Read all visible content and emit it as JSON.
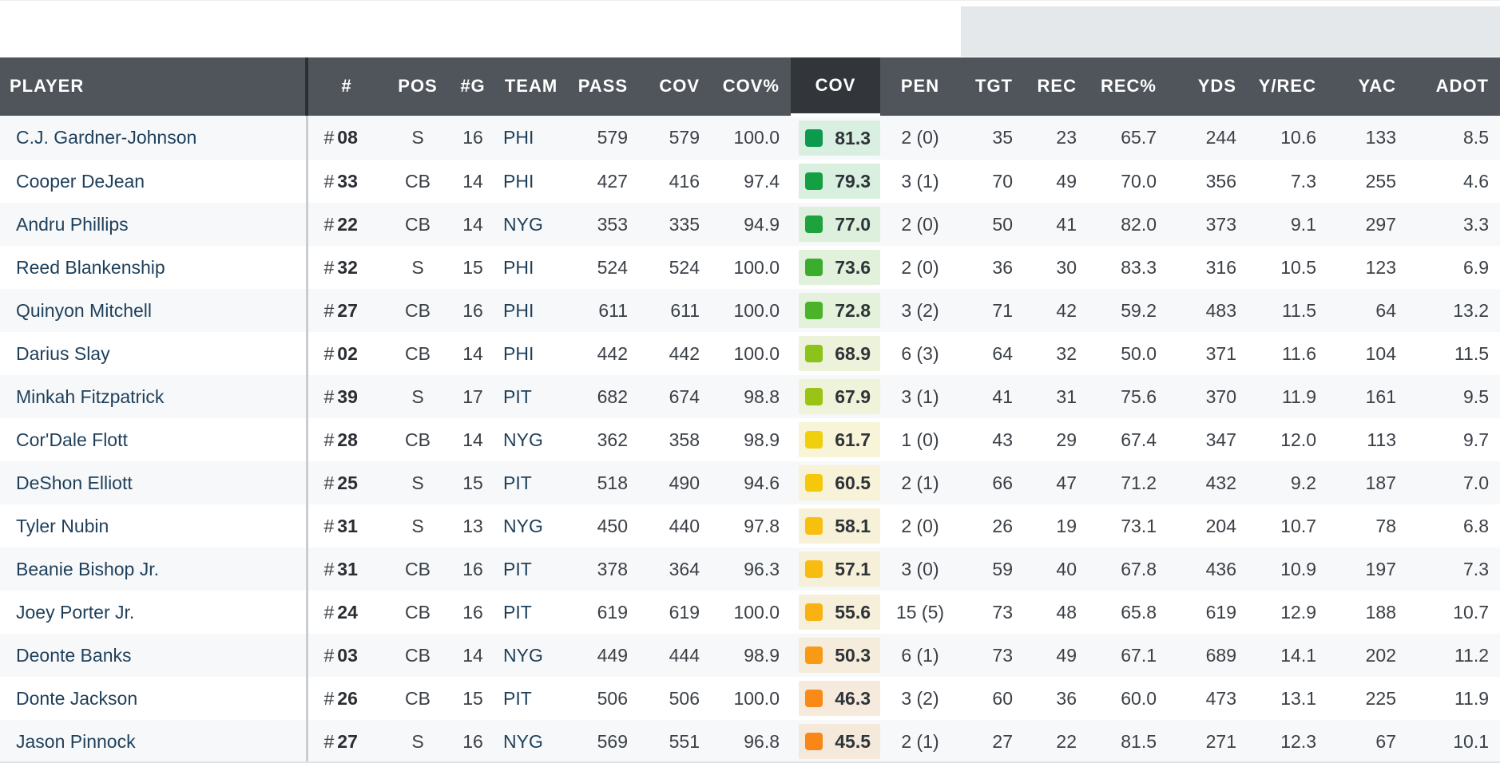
{
  "headers": {
    "player": "PLAYER",
    "number": "#",
    "pos": "POS",
    "games": "#G",
    "team": "TEAM",
    "pass": "PASS",
    "cov": "COV",
    "cov_pct": "COV%",
    "cov_grade": "COV",
    "pen": "PEN",
    "tgt": "TGT",
    "rec": "REC",
    "rec_pct": "REC%",
    "yds": "YDS",
    "y_rec": "Y/REC",
    "yac": "YAC",
    "adot": "ADOT"
  },
  "hash_symbol": "#",
  "rows": [
    {
      "player": "C.J. Gardner-Johnson",
      "jersey": "08",
      "pos": "S",
      "games": "16",
      "team": "PHI",
      "pass": "579",
      "cov": "579",
      "cov_pct": "100.0",
      "grade": "81.3",
      "grade_color": "#0e9a4e",
      "grade_bg": "#d8efe2",
      "pen": "2 (0)",
      "tgt": "35",
      "rec": "23",
      "rec_pct": "65.7",
      "yds": "244",
      "y_rec": "10.6",
      "yac": "133",
      "adot": "8.5"
    },
    {
      "player": "Cooper DeJean",
      "jersey": "33",
      "pos": "CB",
      "games": "14",
      "team": "PHI",
      "pass": "427",
      "cov": "416",
      "cov_pct": "97.4",
      "grade": "79.3",
      "grade_color": "#13a043",
      "grade_bg": "#d9efe0",
      "pen": "3 (1)",
      "tgt": "70",
      "rec": "49",
      "rec_pct": "70.0",
      "yds": "356",
      "y_rec": "7.3",
      "yac": "255",
      "adot": "4.6"
    },
    {
      "player": "Andru Phillips",
      "jersey": "22",
      "pos": "CB",
      "games": "14",
      "team": "NYG",
      "pass": "353",
      "cov": "335",
      "cov_pct": "94.9",
      "grade": "77.0",
      "grade_color": "#1ea33c",
      "grade_bg": "#dcf0dd",
      "pen": "2 (0)",
      "tgt": "50",
      "rec": "41",
      "rec_pct": "82.0",
      "yds": "373",
      "y_rec": "9.1",
      "yac": "297",
      "adot": "3.3"
    },
    {
      "player": "Reed Blankenship",
      "jersey": "32",
      "pos": "S",
      "games": "15",
      "team": "PHI",
      "pass": "524",
      "cov": "524",
      "cov_pct": "100.0",
      "grade": "73.6",
      "grade_color": "#3aae2c",
      "grade_bg": "#e1f1dc",
      "pen": "2 (0)",
      "tgt": "36",
      "rec": "30",
      "rec_pct": "83.3",
      "yds": "316",
      "y_rec": "10.5",
      "yac": "123",
      "adot": "6.9"
    },
    {
      "player": "Quinyon Mitchell",
      "jersey": "27",
      "pos": "CB",
      "games": "16",
      "team": "PHI",
      "pass": "611",
      "cov": "611",
      "cov_pct": "100.0",
      "grade": "72.8",
      "grade_color": "#4cb229",
      "grade_bg": "#e4f2dc",
      "pen": "3 (2)",
      "tgt": "71",
      "rec": "42",
      "rec_pct": "59.2",
      "yds": "483",
      "y_rec": "11.5",
      "yac": "64",
      "adot": "13.2"
    },
    {
      "player": "Darius Slay",
      "jersey": "02",
      "pos": "CB",
      "games": "14",
      "team": "PHI",
      "pass": "442",
      "cov": "442",
      "cov_pct": "100.0",
      "grade": "68.9",
      "grade_color": "#8cc21a",
      "grade_bg": "#ecf3da",
      "pen": "6 (3)",
      "tgt": "64",
      "rec": "32",
      "rec_pct": "50.0",
      "yds": "371",
      "y_rec": "11.6",
      "yac": "104",
      "adot": "11.5"
    },
    {
      "player": "Minkah Fitzpatrick",
      "jersey": "39",
      "pos": "S",
      "games": "17",
      "team": "PIT",
      "pass": "682",
      "cov": "674",
      "cov_pct": "98.8",
      "grade": "67.9",
      "grade_color": "#99c416",
      "grade_bg": "#eef3d9",
      "pen": "3 (1)",
      "tgt": "41",
      "rec": "31",
      "rec_pct": "75.6",
      "yds": "370",
      "y_rec": "11.9",
      "yac": "161",
      "adot": "9.5"
    },
    {
      "player": "Cor'Dale Flott",
      "jersey": "28",
      "pos": "CB",
      "games": "14",
      "team": "NYG",
      "pass": "362",
      "cov": "358",
      "cov_pct": "98.9",
      "grade": "61.7",
      "grade_color": "#f0cf0c",
      "grade_bg": "#f7f4d8",
      "pen": "1 (0)",
      "tgt": "43",
      "rec": "29",
      "rec_pct": "67.4",
      "yds": "347",
      "y_rec": "12.0",
      "yac": "113",
      "adot": "9.7"
    },
    {
      "player": "DeShon Elliott",
      "jersey": "25",
      "pos": "S",
      "games": "15",
      "team": "PIT",
      "pass": "518",
      "cov": "490",
      "cov_pct": "94.6",
      "grade": "60.5",
      "grade_color": "#f5c80c",
      "grade_bg": "#f7f2d8",
      "pen": "2 (1)",
      "tgt": "66",
      "rec": "47",
      "rec_pct": "71.2",
      "yds": "432",
      "y_rec": "9.2",
      "yac": "187",
      "adot": "7.0"
    },
    {
      "player": "Tyler Nubin",
      "jersey": "31",
      "pos": "S",
      "games": "13",
      "team": "NYG",
      "pass": "450",
      "cov": "440",
      "cov_pct": "97.8",
      "grade": "58.1",
      "grade_color": "#f7c00e",
      "grade_bg": "#f7f1d9",
      "pen": "2 (0)",
      "tgt": "26",
      "rec": "19",
      "rec_pct": "73.1",
      "yds": "204",
      "y_rec": "10.7",
      "yac": "78",
      "adot": "6.8"
    },
    {
      "player": "Beanie Bishop Jr.",
      "jersey": "31",
      "pos": "CB",
      "games": "16",
      "team": "PIT",
      "pass": "378",
      "cov": "364",
      "cov_pct": "96.3",
      "grade": "57.1",
      "grade_color": "#f8bb10",
      "grade_bg": "#f6f0d9",
      "pen": "3 (0)",
      "tgt": "59",
      "rec": "40",
      "rec_pct": "67.8",
      "yds": "436",
      "y_rec": "10.9",
      "yac": "197",
      "adot": "7.3"
    },
    {
      "player": "Joey Porter Jr.",
      "jersey": "24",
      "pos": "CB",
      "games": "16",
      "team": "PIT",
      "pass": "619",
      "cov": "619",
      "cov_pct": "100.0",
      "grade": "55.6",
      "grade_color": "#f9b211",
      "grade_bg": "#f6efd9",
      "pen": "15 (5)",
      "tgt": "73",
      "rec": "48",
      "rec_pct": "65.8",
      "yds": "619",
      "y_rec": "12.9",
      "yac": "188",
      "adot": "10.7"
    },
    {
      "player": "Deonte Banks",
      "jersey": "03",
      "pos": "CB",
      "games": "14",
      "team": "NYG",
      "pass": "449",
      "cov": "444",
      "cov_pct": "98.9",
      "grade": "50.3",
      "grade_color": "#f99a15",
      "grade_bg": "#f5ecdc",
      "pen": "6 (1)",
      "tgt": "73",
      "rec": "49",
      "rec_pct": "67.1",
      "yds": "689",
      "y_rec": "14.1",
      "yac": "202",
      "adot": "11.2"
    },
    {
      "player": "Donte Jackson",
      "jersey": "26",
      "pos": "CB",
      "games": "15",
      "team": "PIT",
      "pass": "506",
      "cov": "506",
      "cov_pct": "100.0",
      "grade": "46.3",
      "grade_color": "#f98a17",
      "grade_bg": "#f5eadc",
      "pen": "3 (2)",
      "tgt": "60",
      "rec": "36",
      "rec_pct": "60.0",
      "yds": "473",
      "y_rec": "13.1",
      "yac": "225",
      "adot": "11.9"
    },
    {
      "player": "Jason Pinnock",
      "jersey": "27",
      "pos": "S",
      "games": "16",
      "team": "NYG",
      "pass": "569",
      "cov": "551",
      "cov_pct": "96.8",
      "grade": "45.5",
      "grade_color": "#f98616",
      "grade_bg": "#f5e9dc",
      "pen": "2 (1)",
      "tgt": "27",
      "rec": "22",
      "rec_pct": "81.5",
      "yds": "271",
      "y_rec": "12.3",
      "yac": "67",
      "adot": "10.1"
    }
  ]
}
